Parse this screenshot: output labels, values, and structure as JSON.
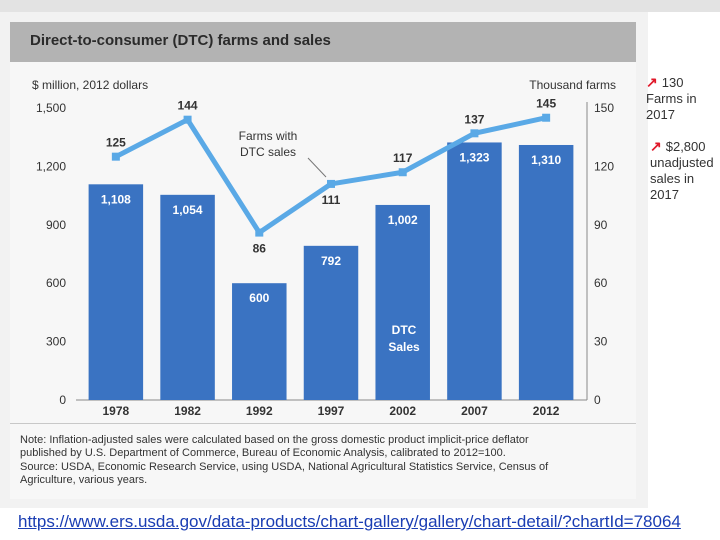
{
  "title": "Direct-to-consumer (DTC) farms and sales",
  "left_axis_label": "$ million, 2012 dollars",
  "right_axis_label": "Thousand farms",
  "note_lines": [
    "Note: Inflation-adjusted sales were calculated based on the gross domestic product implicit-price deflator",
    "published by U.S. Department of Commerce, Bureau of Economic Analysis, calibrated to 2012=100.",
    "Source: USDA, Economic Research Service, using USDA, National Agricultural Statistics Service, Census of",
    "Agriculture, various years."
  ],
  "side_notes": [
    {
      "arrow": "↗",
      "text": "130 Farms in 2017"
    },
    {
      "arrow": "↗",
      "text": "$2,800 unadjusted sales in 2017"
    }
  ],
  "link_text": "https://www.ers.usda.gov/data-products/chart-gallery/gallery/chart-detail/?chartId=78064",
  "colors": {
    "bar": "#3a73c2",
    "line": "#5aa9e6",
    "header": "#b3b3b3",
    "link": "#1a3db3",
    "arrow": "#e0192a"
  },
  "chart_data": {
    "type": "bar+line",
    "categories": [
      "1978",
      "1982",
      "1992",
      "1997",
      "2002",
      "2007",
      "2012"
    ],
    "left_ticks": [
      "0",
      "300",
      "600",
      "900",
      "1,200",
      "1,500"
    ],
    "right_ticks": [
      "0",
      "30",
      "60",
      "90",
      "120",
      "150"
    ],
    "ylim_left": [
      0,
      1500
    ],
    "ylim_right": [
      0,
      150
    ],
    "series": [
      {
        "name": "DTC Sales",
        "axis": "left",
        "type": "bar",
        "values": [
          1108,
          1054,
          600,
          792,
          1002,
          1323,
          1310
        ],
        "labels": [
          "1,108",
          "1,054",
          "600",
          "792",
          "1,002",
          "1,323",
          "1,310"
        ]
      },
      {
        "name": "Farms with DTC sales",
        "axis": "right",
        "type": "line",
        "values": [
          125,
          144,
          86,
          111,
          117,
          137,
          145
        ],
        "labels": [
          "125",
          "144",
          "86",
          "111",
          "117",
          "137",
          "145"
        ]
      }
    ],
    "annotations": {
      "bar_series": "DTC Sales",
      "line_series": "Farms with DTC sales"
    }
  }
}
